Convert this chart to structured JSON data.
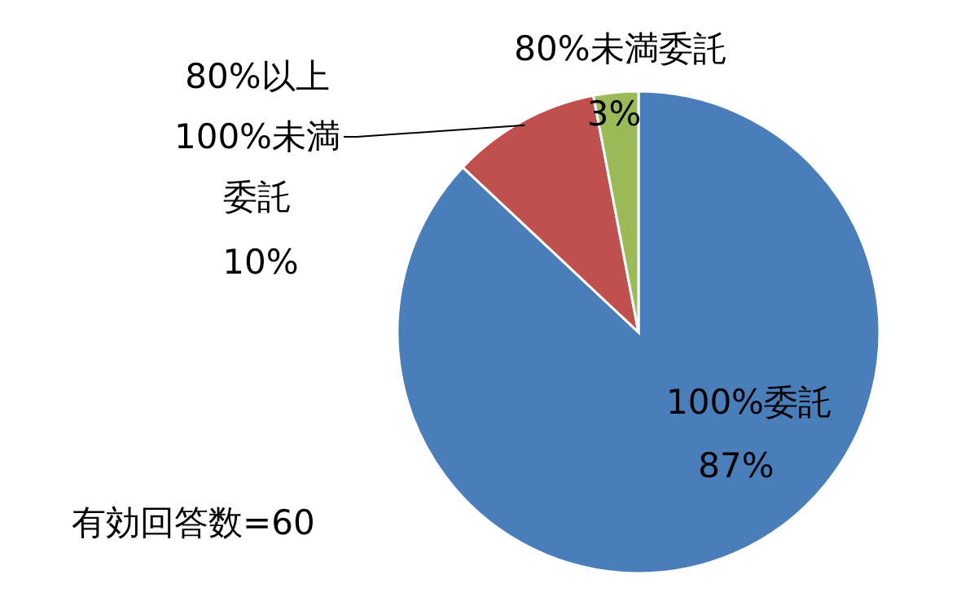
{
  "chart_data": {
    "type": "pie",
    "categories": [
      "100%委託",
      "80%以上100%未満委託",
      "80%未満委託"
    ],
    "value_labels": [
      "87%",
      "10%",
      "3%"
    ],
    "values": [
      87,
      10,
      3
    ],
    "colors": [
      "#4a7ebb",
      "#c0504d",
      "#9bbb59"
    ],
    "annotations": [
      "有効回答数=60"
    ]
  }
}
